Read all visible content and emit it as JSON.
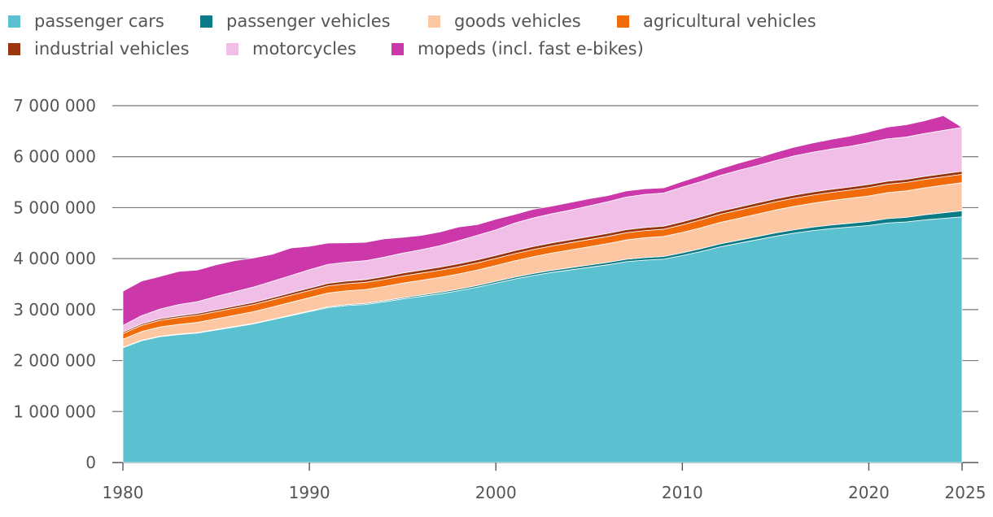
{
  "colors": {
    "passenger_cars": "#5bc1d0",
    "passenger_vehicles": "#0b7b86",
    "goods_vehicles": "#fcc7a2",
    "agricultural_vehicles": "#f26b0a",
    "industrial_vehicles": "#9a3510",
    "motorcycles": "#f0bee6",
    "mopeds": "#cc38aa",
    "grid": "#777777",
    "tick_text": "#555555"
  },
  "chart_data": {
    "type": "area",
    "stacked": true,
    "title": "",
    "xlabel": "",
    "ylabel": "",
    "x": [
      1980,
      1981,
      1982,
      1983,
      1984,
      1985,
      1986,
      1987,
      1988,
      1989,
      1990,
      1991,
      1992,
      1993,
      1994,
      1995,
      1996,
      1997,
      1998,
      1999,
      2000,
      2001,
      2002,
      2003,
      2004,
      2005,
      2006,
      2007,
      2008,
      2009,
      2010,
      2011,
      2012,
      2013,
      2014,
      2015,
      2016,
      2017,
      2018,
      2019,
      2020,
      2021,
      2022,
      2023,
      2024,
      2025
    ],
    "xlim": [
      1980,
      2025
    ],
    "ylim": [
      0,
      7000000
    ],
    "x_ticks": [
      1980,
      1990,
      2000,
      2010,
      2020,
      2025
    ],
    "x_tick_labels": [
      "1980",
      "1990",
      "2000",
      "2010",
      "2020",
      "2025"
    ],
    "y_ticks": [
      0,
      1000000,
      2000000,
      3000000,
      4000000,
      5000000,
      6000000,
      7000000
    ],
    "y_tick_labels": [
      "0",
      "1 000 000",
      "2 000 000",
      "3 000 000",
      "4 000 000",
      "5 000 000",
      "6 000 000",
      "7 000 000"
    ],
    "grid": "horizontal",
    "legend_position": "top",
    "series": [
      {
        "name": "passenger cars",
        "key": "passenger_cars",
        "values": [
          2250000,
          2390000,
          2470000,
          2510000,
          2540000,
          2600000,
          2660000,
          2720000,
          2800000,
          2880000,
          2960000,
          3040000,
          3080000,
          3100000,
          3150000,
          3210000,
          3260000,
          3310000,
          3370000,
          3440000,
          3520000,
          3600000,
          3670000,
          3730000,
          3780000,
          3830000,
          3880000,
          3940000,
          3970000,
          3990000,
          4060000,
          4140000,
          4230000,
          4300000,
          4370000,
          4440000,
          4500000,
          4550000,
          4590000,
          4620000,
          4650000,
          4700000,
          4720000,
          4760000,
          4790000,
          4820000
        ]
      },
      {
        "name": "passenger vehicles",
        "key": "passenger_vehicles",
        "values": [
          10000,
          10000,
          10000,
          10000,
          10000,
          10000,
          10000,
          10000,
          10000,
          12000,
          14000,
          16000,
          18000,
          20000,
          22000,
          24000,
          26000,
          28000,
          30000,
          32000,
          34000,
          36000,
          38000,
          40000,
          42000,
          44000,
          46000,
          48000,
          50000,
          52000,
          54000,
          56000,
          58000,
          60000,
          62000,
          64000,
          66000,
          68000,
          70000,
          75000,
          80000,
          85000,
          90000,
          100000,
          110000,
          120000
        ]
      },
      {
        "name": "goods vehicles",
        "key": "goods_vehicles",
        "values": [
          160000,
          170000,
          180000,
          190000,
          200000,
          210000,
          220000,
          230000,
          240000,
          250000,
          260000,
          270000,
          270000,
          275000,
          280000,
          285000,
          290000,
          295000,
          300000,
          305000,
          310000,
          320000,
          330000,
          340000,
          350000,
          360000,
          370000,
          380000,
          390000,
          395000,
          400000,
          410000,
          420000,
          430000,
          440000,
          450000,
          460000,
          470000,
          480000,
          490000,
          500000,
          510000,
          520000,
          530000,
          540000,
          550000
        ]
      },
      {
        "name": "agricultural vehicles",
        "key": "agricultural_vehicles",
        "values": [
          110000,
          120000,
          130000,
          135000,
          140000,
          140000,
          140000,
          140000,
          140000,
          140000,
          140000,
          140000,
          140000,
          140000,
          140000,
          140000,
          140000,
          140000,
          140000,
          140000,
          140000,
          140000,
          140000,
          140000,
          140000,
          140000,
          140000,
          140000,
          140000,
          140000,
          150000,
          155000,
          160000,
          160000,
          160000,
          160000,
          160000,
          160000,
          160000,
          160000,
          165000,
          165000,
          165000,
          165000,
          165000,
          165000
        ]
      },
      {
        "name": "industrial vehicles",
        "key": "industrial_vehicles",
        "values": [
          30000,
          30000,
          32000,
          34000,
          36000,
          38000,
          40000,
          42000,
          44000,
          46000,
          48000,
          50000,
          52000,
          54000,
          56000,
          58000,
          60000,
          60000,
          60000,
          60000,
          60000,
          60000,
          60000,
          60000,
          60000,
          60000,
          60000,
          60000,
          60000,
          60000,
          60000,
          60000,
          60000,
          60000,
          60000,
          60000,
          60000,
          60000,
          60000,
          60000,
          60000,
          60000,
          60000,
          60000,
          60000,
          60000
        ]
      },
      {
        "name": "motorcycles",
        "key": "motorcycles",
        "values": [
          130000,
          160000,
          190000,
          220000,
          230000,
          260000,
          280000,
          300000,
          320000,
          340000,
          360000,
          370000,
          370000,
          370000,
          380000,
          390000,
          400000,
          420000,
          450000,
          480000,
          500000,
          540000,
          560000,
          570000,
          580000,
          600000,
          620000,
          640000,
          650000,
          650000,
          680000,
          690000,
          700000,
          720000,
          730000,
          750000,
          770000,
          780000,
          790000,
          800000,
          820000,
          830000,
          830000,
          840000,
          850000,
          860000
        ]
      },
      {
        "name": "mopeds (incl. fast e-bikes)",
        "key": "mopeds",
        "values": [
          670000,
          680000,
          640000,
          650000,
          620000,
          620000,
          610000,
          570000,
          530000,
          540000,
          460000,
          420000,
          380000,
          360000,
          360000,
          310000,
          280000,
          270000,
          270000,
          210000,
          210000,
          170000,
          170000,
          150000,
          150000,
          140000,
          120000,
          120000,
          110000,
          100000,
          110000,
          120000,
          130000,
          140000,
          150000,
          160000,
          170000,
          180000,
          190000,
          200000,
          210000,
          230000,
          240000,
          250000,
          290000,
          0
        ]
      }
    ]
  }
}
